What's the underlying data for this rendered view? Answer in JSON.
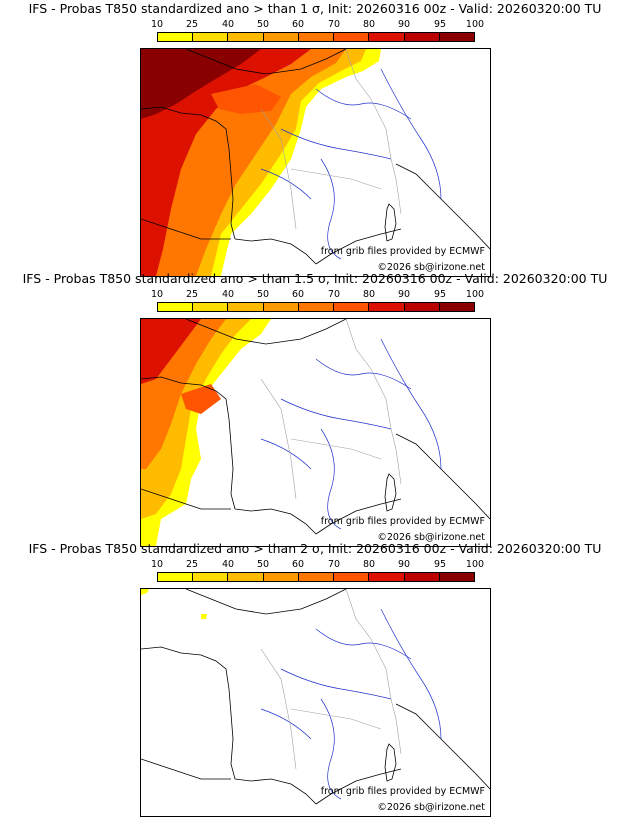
{
  "panels": [
    {
      "title": "IFS - Probas T850  standardized ano > than 1 σ, Init: 20260316 00z - Valid: 20260320:00 TU",
      "source_credit": "from grib files provided by ECMWF",
      "copyright": "©2026 sb@irizone.net",
      "fill_label": "high probability over western France and Atlantic"
    },
    {
      "title": "IFS - Probas T850  standardized ano > than 1.5 σ, Init: 20260316 00z - Valid: 20260320:00 TU",
      "source_credit": "from grib files provided by ECMWF",
      "copyright": "©2026 sb@irizone.net",
      "fill_label": "probability over north-west France and Atlantic"
    },
    {
      "title": "IFS - Probas T850  standardized ano > than 2 σ, Init: 20260316 00z - Valid: 20260320:00 TU",
      "source_credit": "from grib files provided by ECMWF",
      "copyright": "©2026 sb@irizone.net",
      "fill_label": "minimal probability"
    }
  ],
  "colorbar": {
    "ticks": [
      "10",
      "25",
      "40",
      "50",
      "60",
      "70",
      "80",
      "90",
      "95",
      "100"
    ],
    "colors": [
      "#ffff00",
      "#ffdd00",
      "#ffbb00",
      "#ff9900",
      "#ff7700",
      "#ff5500",
      "#dd1100",
      "#bb0000",
      "#880000"
    ]
  }
}
